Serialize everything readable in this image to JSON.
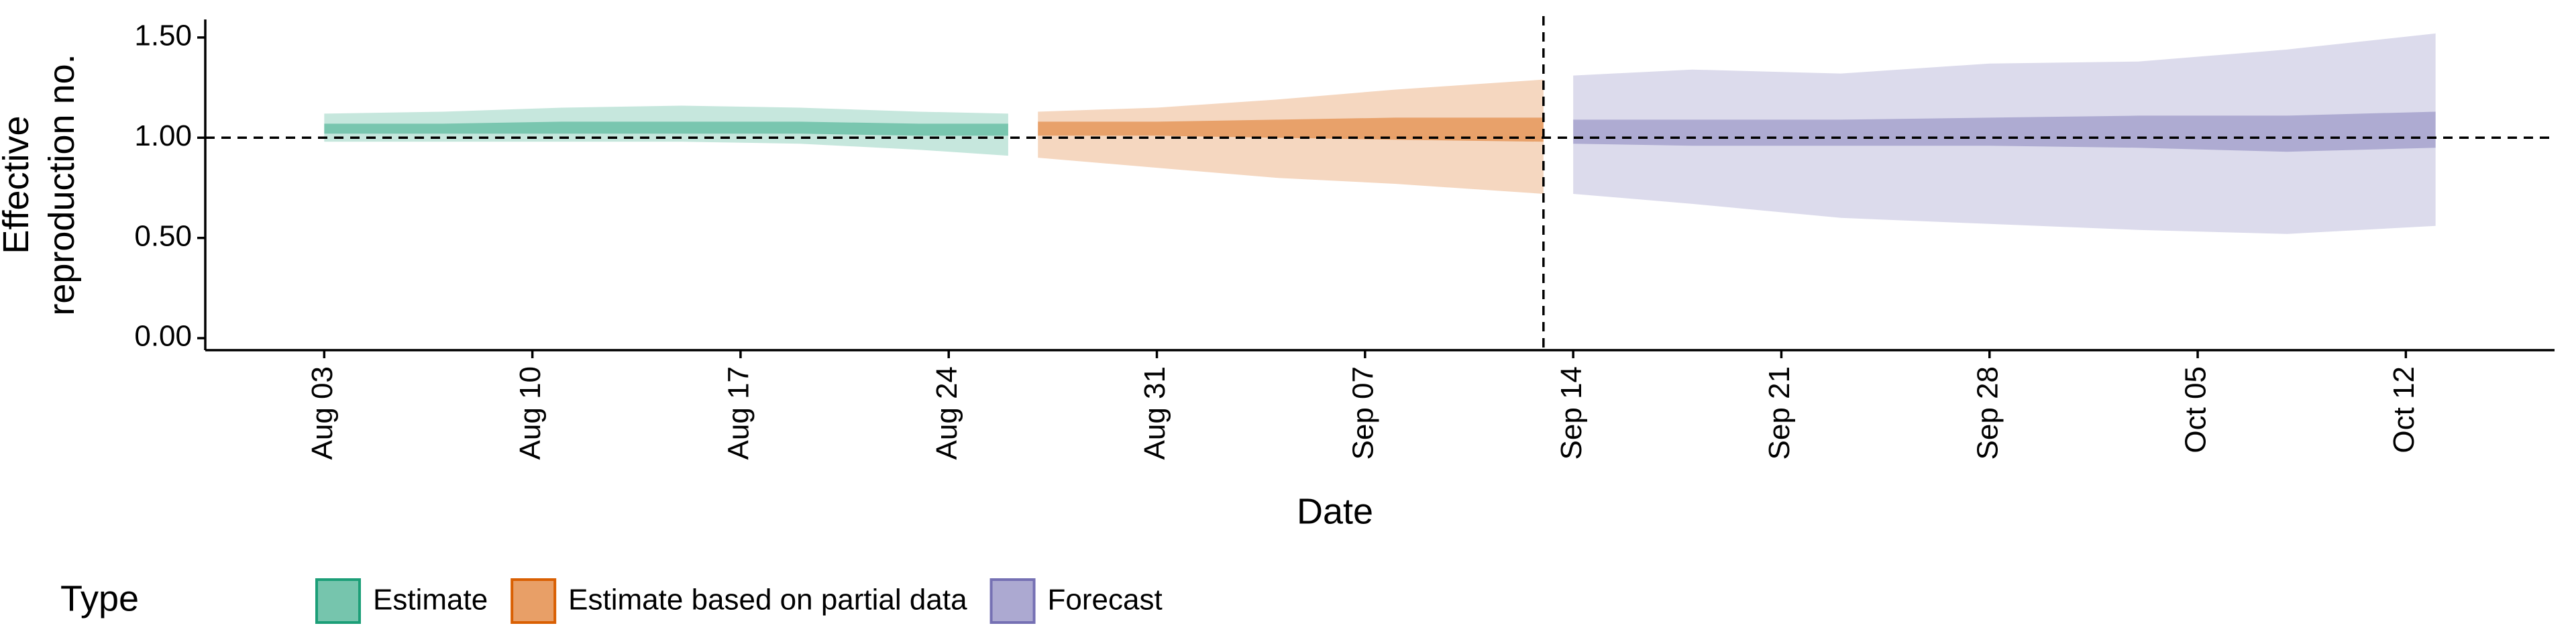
{
  "chart_data": {
    "type": "ribbon",
    "ylabel": [
      "Effective",
      "reproduction no."
    ],
    "xlabel": "Date",
    "legend_title": "Type",
    "xlim": [
      "Jul 30",
      "Oct 17"
    ],
    "xticks": [
      "Aug 03",
      "Aug 10",
      "Aug 17",
      "Aug 24",
      "Aug 31",
      "Sep 07",
      "Sep 14",
      "Sep 21",
      "Sep 28",
      "Oct 05",
      "Oct 12"
    ],
    "ylim": [
      -0.06,
      1.59
    ],
    "yticks": [
      {
        "value": 0,
        "label": "0.00"
      },
      {
        "value": 0.5,
        "label": "0.50"
      },
      {
        "value": 1,
        "label": "1.00"
      },
      {
        "value": 1.5,
        "label": "1.50"
      }
    ],
    "hline": 1,
    "vline": "Sep 13",
    "series": [
      {
        "name": "Estimate",
        "color": "#1b9e77",
        "x": [
          "Aug 03",
          "Aug 07",
          "Aug 11",
          "Aug 15",
          "Aug 19",
          "Aug 23",
          "Aug 26"
        ],
        "upper90": [
          1.12,
          1.13,
          1.15,
          1.16,
          1.15,
          1.13,
          1.12
        ],
        "lower90": [
          0.98,
          0.98,
          0.98,
          0.98,
          0.97,
          0.94,
          0.91
        ],
        "upper50": [
          1.07,
          1.07,
          1.08,
          1.08,
          1.08,
          1.07,
          1.07
        ],
        "lower50": [
          1.02,
          1.02,
          1.02,
          1.02,
          1.02,
          1.01,
          1.01
        ]
      },
      {
        "name": "Estimate based on partial data",
        "color": "#d95f02",
        "x": [
          "Aug 27",
          "Aug 31",
          "Sep 04",
          "Sep 08",
          "Sep 13"
        ],
        "upper90": [
          1.13,
          1.15,
          1.19,
          1.24,
          1.29
        ],
        "lower90": [
          0.9,
          0.85,
          0.8,
          0.77,
          0.72
        ],
        "upper50": [
          1.08,
          1.08,
          1.09,
          1.1,
          1.1
        ],
        "lower50": [
          1.01,
          1.01,
          1.0,
          0.99,
          0.98
        ]
      },
      {
        "name": "Forecast",
        "color": "#7570b3",
        "x": [
          "Sep 14",
          "Sep 18",
          "Sep 23",
          "Sep 28",
          "Oct 03",
          "Oct 08",
          "Oct 13"
        ],
        "upper90": [
          1.31,
          1.34,
          1.32,
          1.37,
          1.38,
          1.44,
          1.52
        ],
        "lower90": [
          0.72,
          0.67,
          0.6,
          0.57,
          0.54,
          0.52,
          0.56
        ],
        "upper50": [
          1.09,
          1.09,
          1.09,
          1.1,
          1.11,
          1.11,
          1.13
        ],
        "lower50": [
          0.97,
          0.96,
          0.96,
          0.96,
          0.95,
          0.93,
          0.95
        ]
      }
    ]
  }
}
